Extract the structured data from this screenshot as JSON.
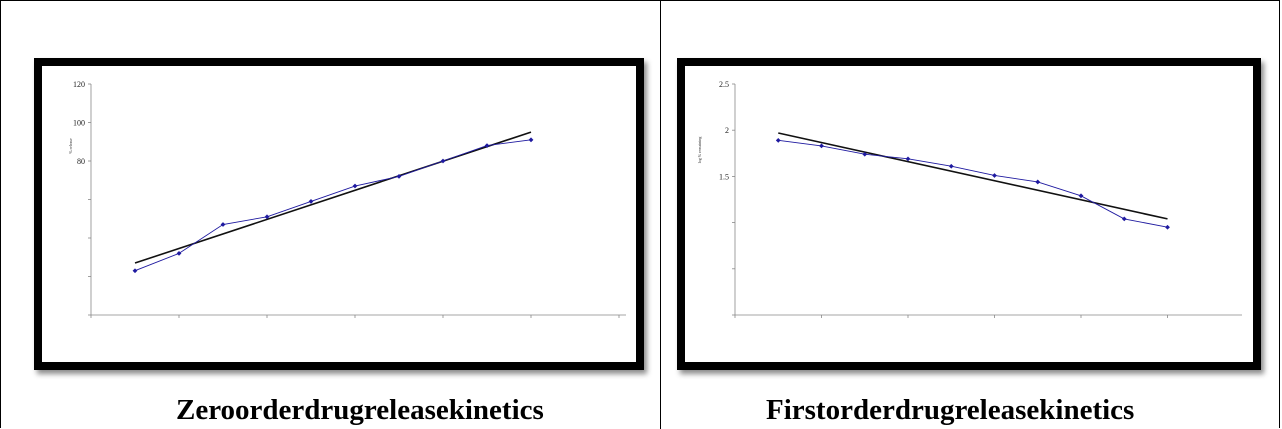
{
  "charts": [
    {
      "caption": "Zeroorderdrugreleasekinetics",
      "chart_data": {
        "type": "scatter",
        "ylabel": "% release",
        "yticks": [
          80,
          100,
          120
        ],
        "ylim": [
          0,
          120
        ],
        "xlim": [
          0,
          6
        ],
        "x": [
          0.5,
          1,
          1.5,
          2,
          2.5,
          3,
          3.5,
          4,
          4.5,
          5
        ],
        "series": [
          {
            "values": [
              23,
              32,
              47,
              51,
              59,
              67,
              72,
              80,
              88,
              91
            ],
            "color": "#1f1aa0"
          }
        ],
        "trendline": {
          "from": [
            0.5,
            27
          ],
          "to": [
            5,
            95
          ],
          "color": "#111111"
        },
        "grid": false,
        "legend": "none"
      }
    },
    {
      "caption": "Firstorderdrugreleasekinetics",
      "chart_data": {
        "type": "scatter",
        "ylabel": "log % remaining",
        "yticks": [
          1.5,
          2,
          2.5
        ],
        "ylim": [
          0,
          2.5
        ],
        "xlim": [
          0,
          6
        ],
        "x": [
          0.5,
          1,
          1.5,
          2,
          2.5,
          3,
          3.5,
          4,
          4.5,
          5
        ],
        "series": [
          {
            "values": [
              1.89,
              1.83,
              1.74,
              1.69,
              1.61,
              1.51,
              1.44,
              1.29,
              1.04,
              0.95
            ],
            "color": "#1f1aa0"
          }
        ],
        "trendline": {
          "from": [
            0.5,
            1.97
          ],
          "to": [
            5,
            1.04
          ],
          "color": "#111111"
        },
        "grid": false,
        "legend": "none"
      }
    }
  ]
}
